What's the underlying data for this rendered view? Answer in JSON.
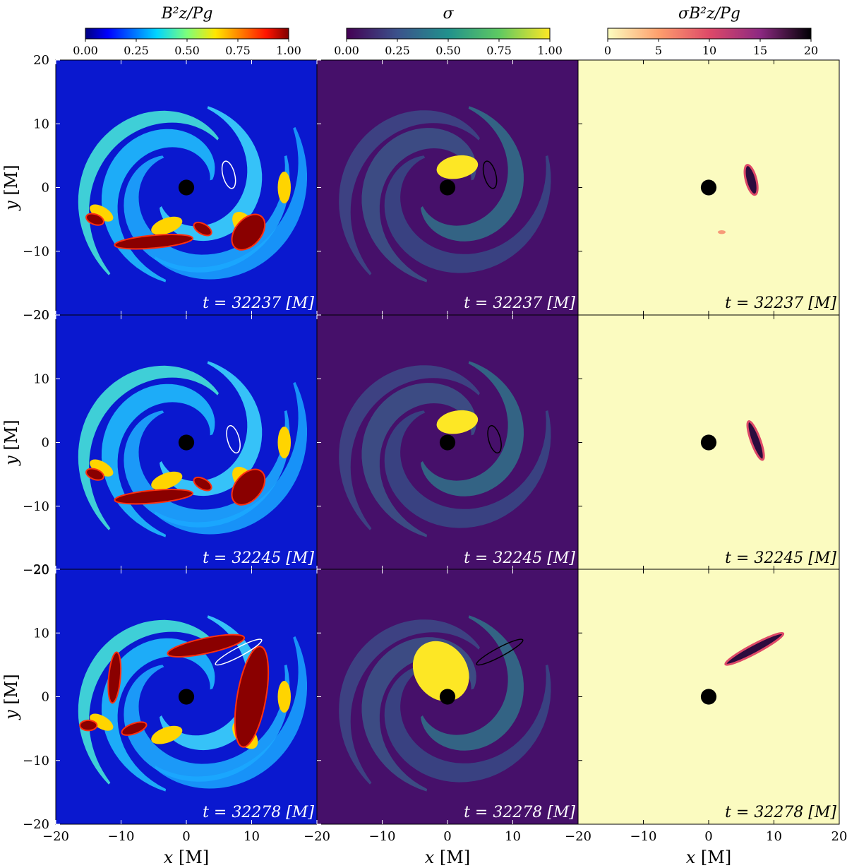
{
  "chart_data": {
    "type": "heatmap",
    "layout": "3x3 panel grid, shared axes",
    "colorbars": [
      {
        "title": "B_z^2/P_g",
        "colormap": "jet",
        "ticks": [
          "0.00",
          "0.25",
          "0.50",
          "0.75",
          "1.00"
        ],
        "range": [
          0,
          1
        ]
      },
      {
        "title": "σ",
        "colormap": "viridis",
        "ticks": [
          "0.00",
          "0.25",
          "0.50",
          "0.75",
          "1.00"
        ],
        "range": [
          0,
          1
        ]
      },
      {
        "title": "σ B_z^2/P_g",
        "colormap": "magma_r",
        "ticks": [
          "0",
          "5",
          "10",
          "15",
          "20"
        ],
        "range": [
          0,
          20
        ]
      }
    ],
    "times": [
      "t = 32237 [M]",
      "t = 32245 [M]",
      "t = 32278 [M]"
    ],
    "xlabel": "x [M]",
    "ylabel": "y [M]",
    "xlim": [
      -20,
      20
    ],
    "ylim": [
      -20,
      20
    ],
    "x_ticks": [
      -20,
      -10,
      0,
      10,
      20
    ],
    "y_ticks": [
      -20,
      -10,
      0,
      10,
      20
    ],
    "black_hole": {
      "x": 0,
      "y": 0,
      "radius": 2
    },
    "features": [
      {
        "time": 32237,
        "region_center": [
          6.5,
          2.0
        ],
        "shape": "crescent",
        "description_source": "contoured plasmoid region"
      },
      {
        "time": 32245,
        "region_center": [
          7.2,
          0.5
        ],
        "shape": "crescent"
      },
      {
        "time": 32278,
        "region_center": [
          8.0,
          7.0
        ],
        "shape": "arc"
      }
    ]
  },
  "labels": {
    "cb1_title": "B²z/Pg",
    "cb2_title": "σ",
    "cb3_title": "σB²z/Pg",
    "xlabel_var": "x",
    "ylabel_var": "y",
    "unit": "[M]"
  }
}
